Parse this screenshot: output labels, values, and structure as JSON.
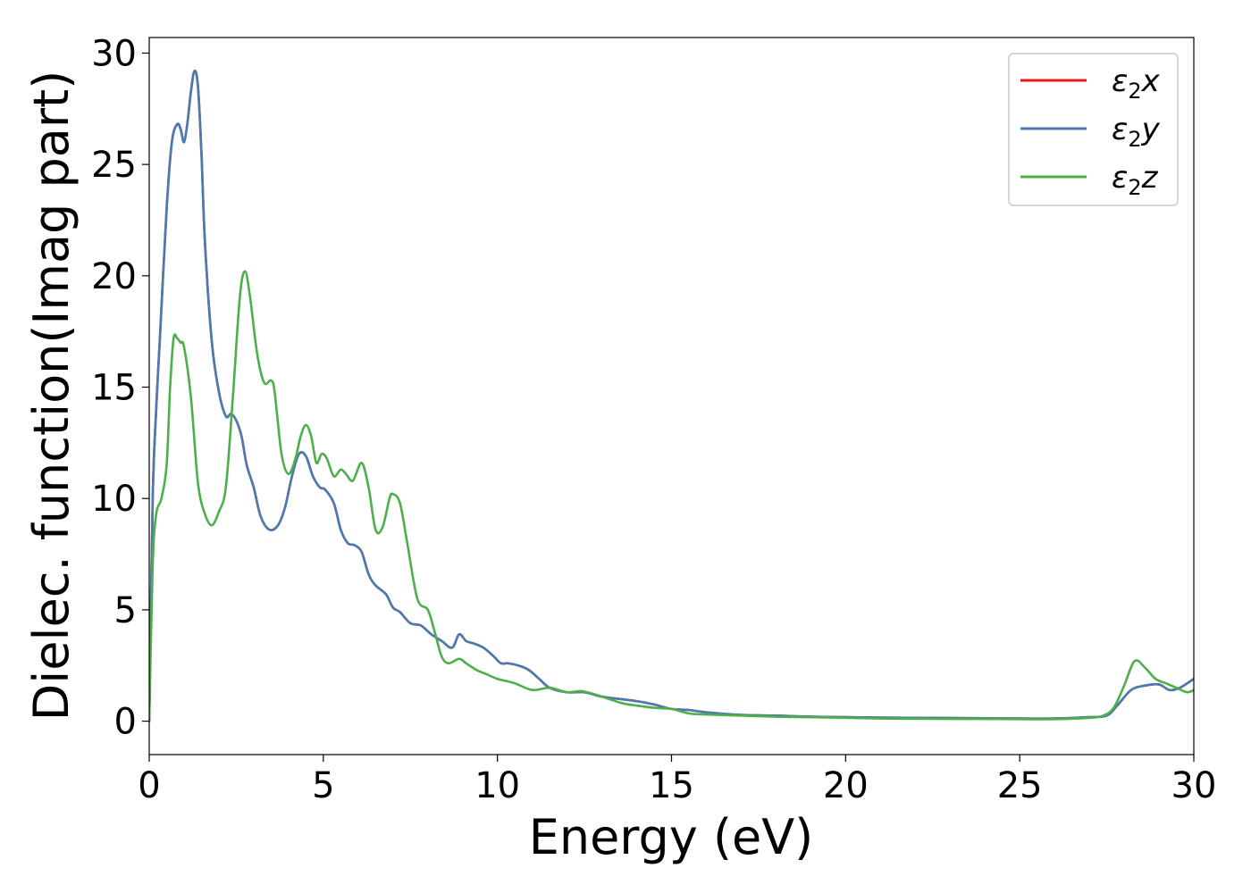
{
  "chart_data": {
    "type": "line",
    "xlabel": "Energy (eV)",
    "ylabel": "Dielec. function(Imag part)",
    "xlim": [
      0,
      30
    ],
    "ylim": [
      -1.5,
      30.7
    ],
    "xticks": [
      0,
      5,
      10,
      15,
      20,
      25,
      30
    ],
    "yticks": [
      0,
      5,
      10,
      15,
      20,
      25,
      30
    ],
    "grid": false,
    "legend_position": "top-right",
    "series": [
      {
        "name": "ε₂x",
        "legend_main": "ε",
        "legend_sub": "2",
        "legend_tail": "x",
        "color": "#e41a1c",
        "x": [
          0,
          0.1,
          0.2,
          0.3,
          0.5,
          0.65,
          0.8,
          0.9,
          1.0,
          1.1,
          1.2,
          1.3,
          1.4,
          1.5,
          1.6,
          1.8,
          2.0,
          2.2,
          2.35,
          2.5,
          2.65,
          2.8,
          3.0,
          3.2,
          3.45,
          3.7,
          3.9,
          4.1,
          4.3,
          4.5,
          4.7,
          4.9,
          5.05,
          5.3,
          5.5,
          5.7,
          5.9,
          6.1,
          6.3,
          6.5,
          6.8,
          7.0,
          7.2,
          7.5,
          7.8,
          8.1,
          8.4,
          8.7,
          8.9,
          9.1,
          9.3,
          9.6,
          9.9,
          10.1,
          10.3,
          10.6,
          10.9,
          11.2,
          11.5,
          12.0,
          12.5,
          13.0,
          13.5,
          14.0,
          14.5,
          15.0,
          15.5,
          16.0,
          17.0,
          18.0,
          19.0,
          20.0,
          21.0,
          22.0,
          23.0,
          24.0,
          25.0,
          26.0,
          27.0,
          27.5,
          27.8,
          28.2,
          28.6,
          29.0,
          29.3,
          29.6,
          30.0
        ],
        "values": [
          0.0,
          10.0,
          14.0,
          17.0,
          23.0,
          26.0,
          26.8,
          26.6,
          26.0,
          26.9,
          28.3,
          29.2,
          28.5,
          25.5,
          21.5,
          17.0,
          14.8,
          13.7,
          13.8,
          13.5,
          12.8,
          11.5,
          10.5,
          9.2,
          8.6,
          8.8,
          9.6,
          11.0,
          12.0,
          11.9,
          11.0,
          10.5,
          10.4,
          9.8,
          8.6,
          8.0,
          7.9,
          7.6,
          6.6,
          6.1,
          5.7,
          5.1,
          4.9,
          4.4,
          4.3,
          3.9,
          3.6,
          3.3,
          3.9,
          3.6,
          3.5,
          3.3,
          2.9,
          2.6,
          2.6,
          2.5,
          2.3,
          1.9,
          1.5,
          1.3,
          1.3,
          1.1,
          1.0,
          0.9,
          0.75,
          0.55,
          0.5,
          0.4,
          0.28,
          0.25,
          0.2,
          0.18,
          0.16,
          0.15,
          0.14,
          0.13,
          0.12,
          0.12,
          0.18,
          0.25,
          0.7,
          1.4,
          1.6,
          1.65,
          1.4,
          1.5,
          1.9
        ]
      },
      {
        "name": "ε₂y",
        "legend_main": "ε",
        "legend_sub": "2",
        "legend_tail": "y",
        "color": "#4a7bb0",
        "x": [
          0,
          0.1,
          0.2,
          0.3,
          0.5,
          0.65,
          0.8,
          0.9,
          1.0,
          1.1,
          1.2,
          1.3,
          1.4,
          1.5,
          1.6,
          1.8,
          2.0,
          2.2,
          2.35,
          2.5,
          2.65,
          2.8,
          3.0,
          3.2,
          3.45,
          3.7,
          3.9,
          4.1,
          4.3,
          4.5,
          4.7,
          4.9,
          5.05,
          5.3,
          5.5,
          5.7,
          5.9,
          6.1,
          6.3,
          6.5,
          6.8,
          7.0,
          7.2,
          7.5,
          7.8,
          8.1,
          8.4,
          8.7,
          8.9,
          9.1,
          9.3,
          9.6,
          9.9,
          10.1,
          10.3,
          10.6,
          10.9,
          11.2,
          11.5,
          12.0,
          12.5,
          13.0,
          13.5,
          14.0,
          14.5,
          15.0,
          15.5,
          16.0,
          17.0,
          18.0,
          19.0,
          20.0,
          21.0,
          22.0,
          23.0,
          24.0,
          25.0,
          26.0,
          27.0,
          27.5,
          27.8,
          28.2,
          28.6,
          29.0,
          29.3,
          29.6,
          30.0
        ],
        "values": [
          0.0,
          10.0,
          14.0,
          17.0,
          23.0,
          26.0,
          26.8,
          26.6,
          26.0,
          26.9,
          28.3,
          29.2,
          28.5,
          25.5,
          21.5,
          17.0,
          14.8,
          13.7,
          13.8,
          13.5,
          12.8,
          11.5,
          10.5,
          9.2,
          8.6,
          8.8,
          9.6,
          11.0,
          12.0,
          11.9,
          11.0,
          10.5,
          10.4,
          9.8,
          8.6,
          8.0,
          7.9,
          7.6,
          6.6,
          6.1,
          5.7,
          5.1,
          4.9,
          4.4,
          4.3,
          3.9,
          3.6,
          3.3,
          3.9,
          3.6,
          3.5,
          3.3,
          2.9,
          2.6,
          2.6,
          2.5,
          2.3,
          1.9,
          1.5,
          1.3,
          1.3,
          1.1,
          1.0,
          0.9,
          0.75,
          0.55,
          0.5,
          0.4,
          0.28,
          0.25,
          0.2,
          0.18,
          0.16,
          0.15,
          0.14,
          0.13,
          0.12,
          0.12,
          0.18,
          0.25,
          0.7,
          1.4,
          1.6,
          1.65,
          1.4,
          1.5,
          1.9
        ]
      },
      {
        "name": "ε₂z",
        "legend_main": "ε",
        "legend_sub": "2",
        "legend_tail": "z",
        "color": "#4daf4a",
        "x": [
          0,
          0.1,
          0.2,
          0.35,
          0.5,
          0.6,
          0.7,
          0.8,
          0.9,
          1.0,
          1.2,
          1.4,
          1.6,
          1.8,
          2.0,
          2.2,
          2.4,
          2.6,
          2.75,
          2.9,
          3.1,
          3.3,
          3.5,
          3.6,
          3.8,
          4.0,
          4.2,
          4.35,
          4.5,
          4.65,
          4.8,
          4.95,
          5.1,
          5.3,
          5.5,
          5.65,
          5.85,
          6.1,
          6.3,
          6.5,
          6.7,
          6.9,
          7.0,
          7.2,
          7.4,
          7.7,
          8.0,
          8.2,
          8.4,
          8.6,
          8.9,
          9.1,
          9.4,
          9.7,
          10.0,
          10.5,
          11.0,
          11.5,
          12.0,
          12.4,
          12.8,
          13.2,
          13.6,
          14.0,
          14.5,
          15.0,
          15.5,
          16.0,
          17.0,
          18.0,
          19.0,
          20.0,
          21.0,
          22.0,
          23.0,
          24.0,
          25.0,
          26.0,
          27.0,
          27.4,
          27.7,
          28.0,
          28.3,
          28.6,
          28.9,
          29.2,
          29.5,
          29.8,
          30.0
        ],
        "values": [
          0.0,
          7.0,
          9.3,
          10.0,
          11.5,
          15.0,
          17.2,
          17.2,
          17.0,
          16.8,
          14.5,
          10.7,
          9.3,
          8.8,
          9.4,
          10.5,
          14.5,
          19.0,
          20.2,
          19.0,
          16.5,
          15.2,
          15.3,
          14.8,
          12.0,
          11.1,
          11.8,
          12.8,
          13.3,
          12.8,
          11.6,
          12.0,
          11.8,
          11.0,
          11.3,
          11.1,
          10.8,
          11.6,
          10.5,
          8.6,
          8.7,
          10.0,
          10.2,
          9.8,
          8.1,
          5.5,
          5.0,
          4.0,
          2.9,
          2.6,
          2.8,
          2.6,
          2.3,
          2.1,
          1.9,
          1.7,
          1.4,
          1.5,
          1.3,
          1.35,
          1.2,
          1.0,
          0.8,
          0.7,
          0.6,
          0.55,
          0.35,
          0.3,
          0.25,
          0.2,
          0.18,
          0.15,
          0.12,
          0.11,
          0.1,
          0.1,
          0.09,
          0.09,
          0.15,
          0.25,
          0.6,
          1.6,
          2.7,
          2.4,
          1.9,
          1.7,
          1.5,
          1.3,
          1.4
        ]
      }
    ]
  }
}
